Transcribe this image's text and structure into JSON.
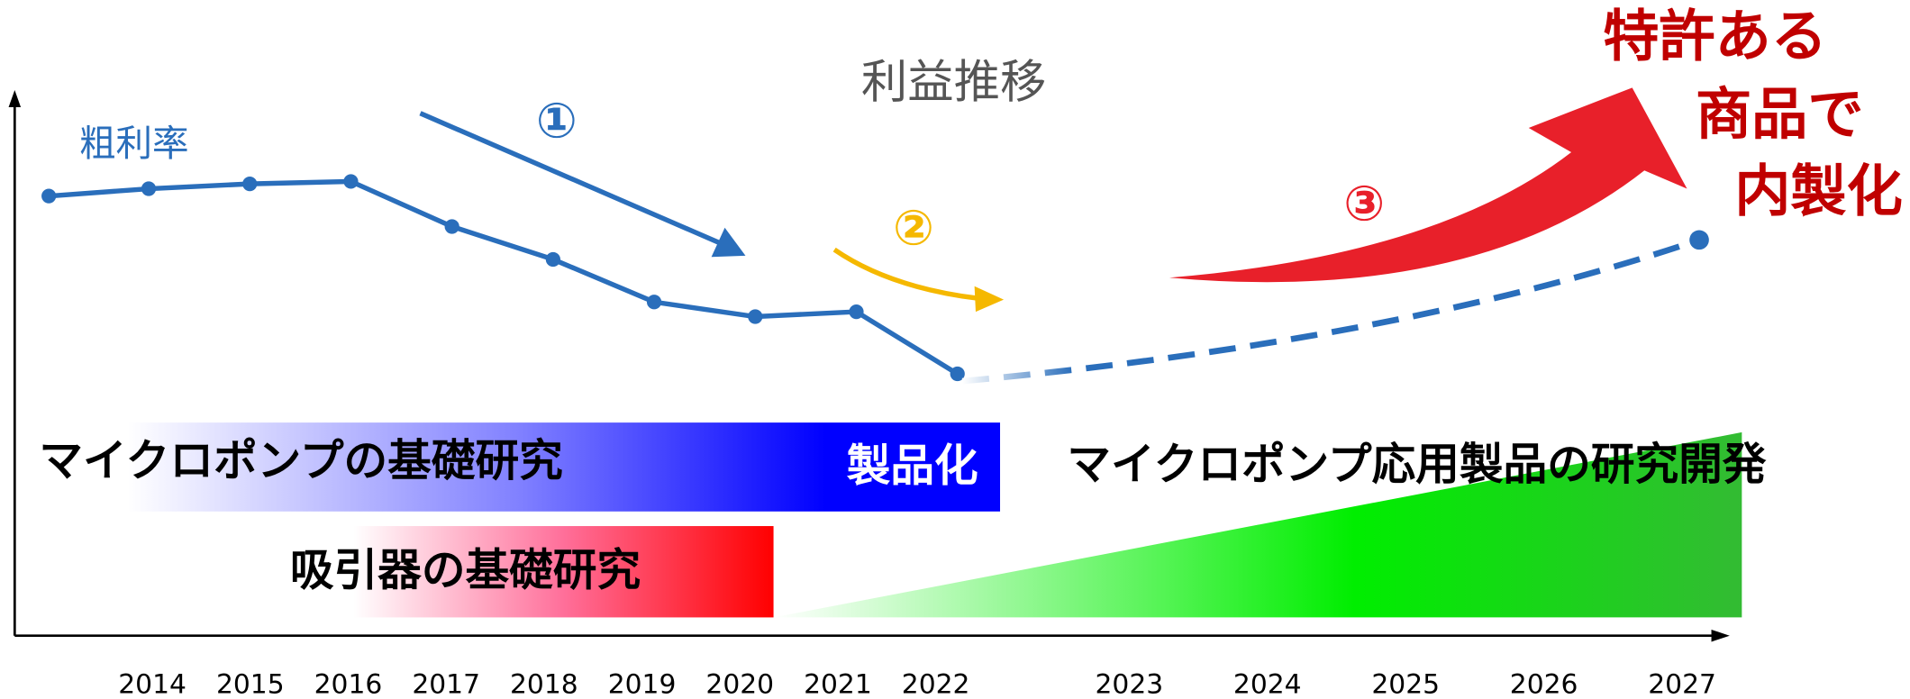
{
  "title": "利益推移",
  "line_label": "粗利率",
  "markers": [
    "①",
    "②",
    "③"
  ],
  "callout": [
    "特許ある",
    "商品で",
    "内製化"
  ],
  "bars": {
    "micropump_basic": "マイクロポンプの基礎研究",
    "productization": "製品化",
    "aspirator_basic": "吸引器の基礎研究",
    "applied_rd": "マイクロポンプ応用製品の研究開発"
  },
  "years_past": [
    "2014",
    "2015",
    "2016",
    "2017",
    "2018",
    "2019",
    "2020",
    "2021",
    "2022"
  ],
  "years_future": [
    "2023",
    "2024",
    "2025",
    "2026",
    "2027"
  ]
}
